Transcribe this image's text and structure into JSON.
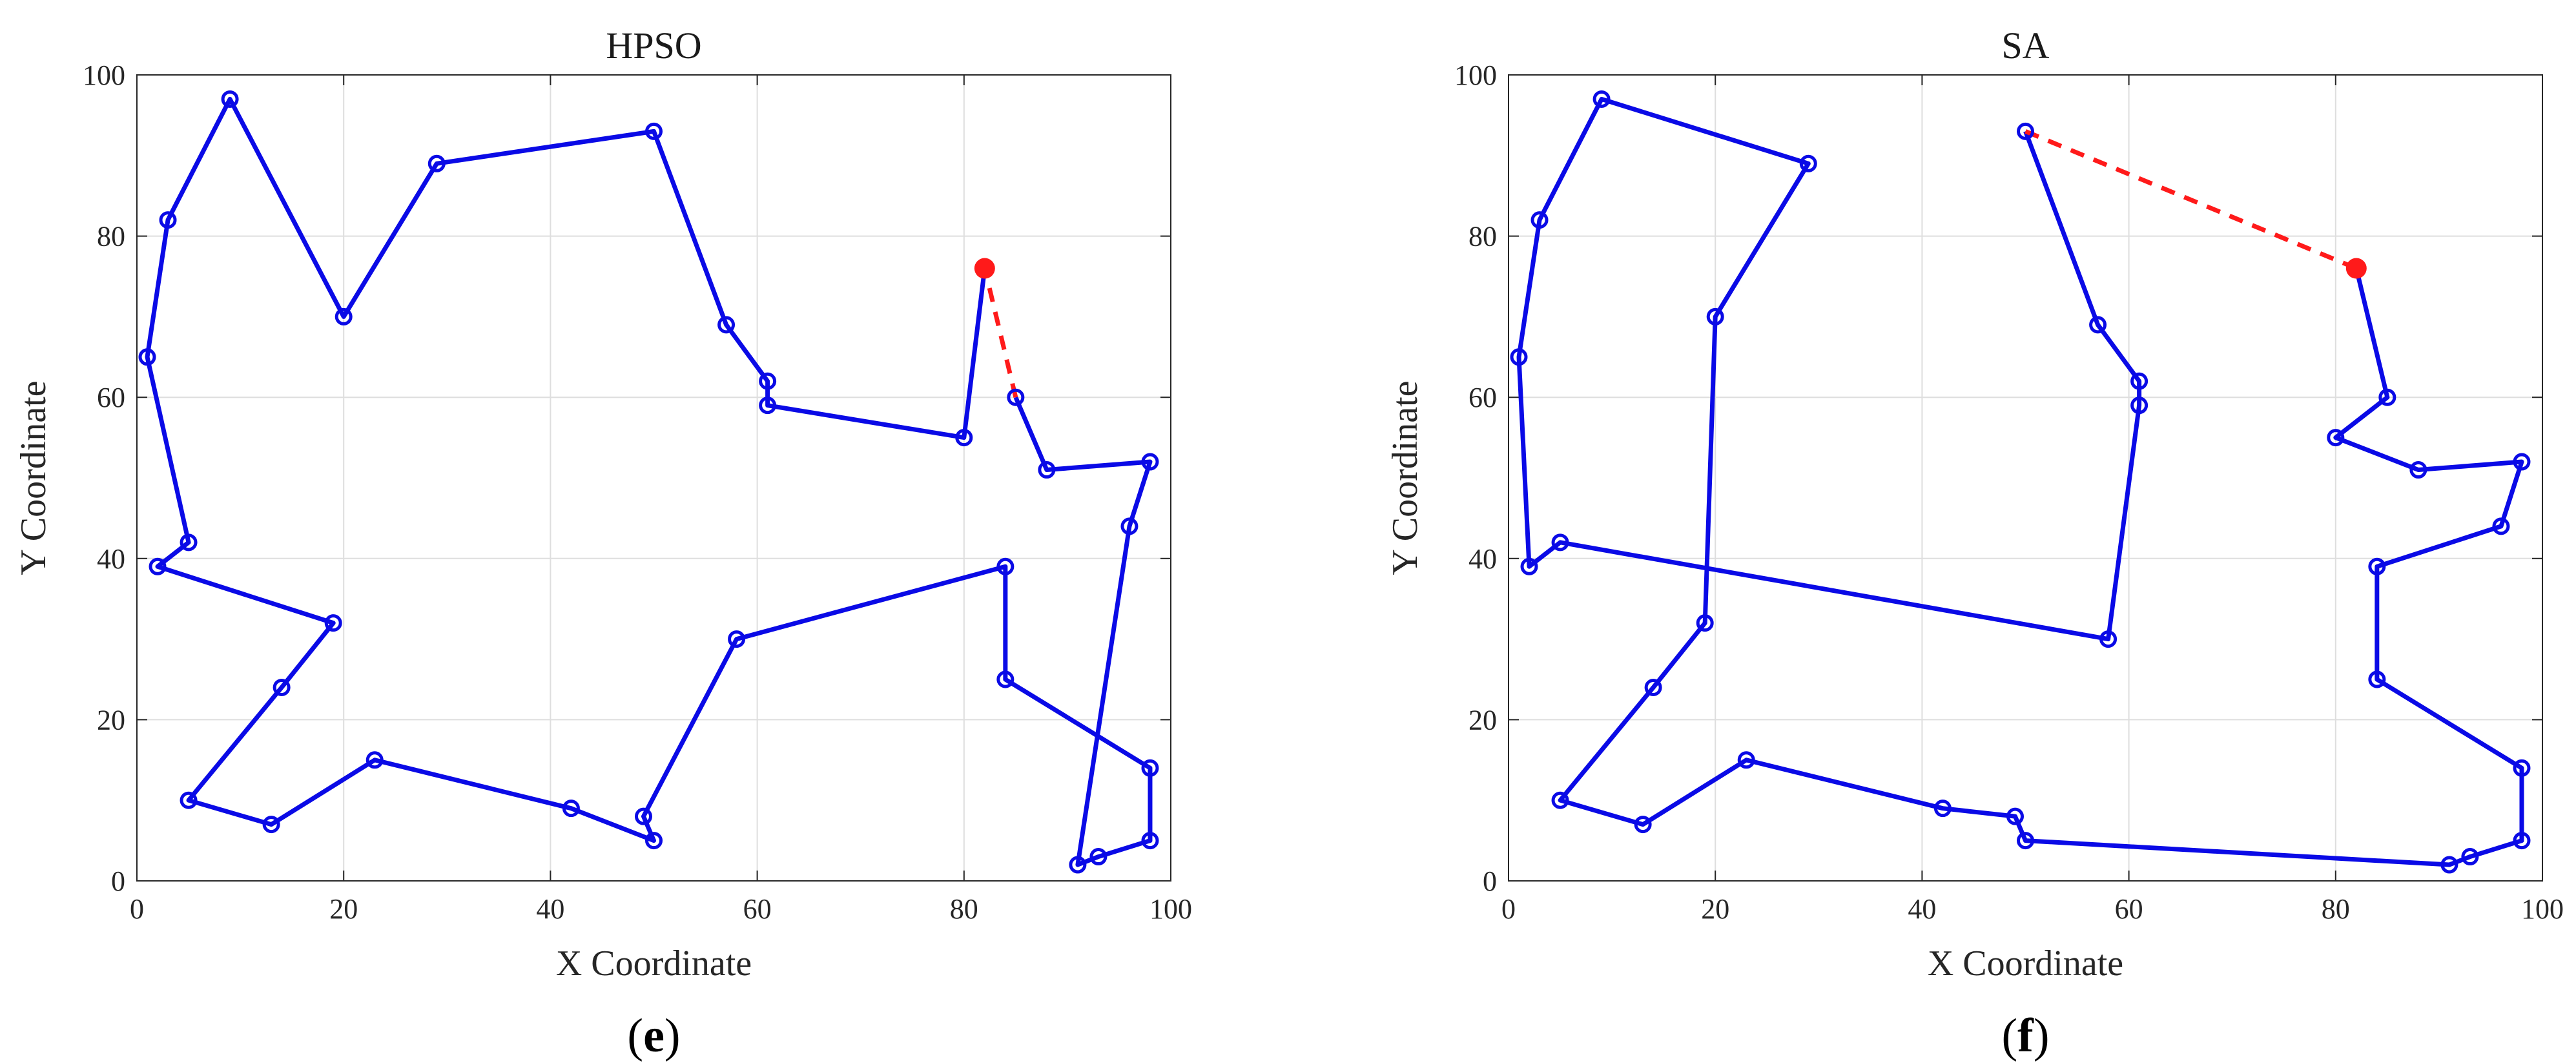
{
  "chart_data": [
    {
      "type": "line",
      "panel_label": "e",
      "title": "HPSO",
      "xlabel": "X Coordinate",
      "ylabel": "Y Coordinate",
      "xlim": [
        0,
        100
      ],
      "ylim": [
        0,
        100
      ],
      "xticks": [
        "0",
        "20",
        "40",
        "60",
        "80",
        "100"
      ],
      "yticks": [
        "0",
        "20",
        "40",
        "60",
        "80",
        "100"
      ],
      "grid": true,
      "route_color": "#0a0ae6",
      "return_color": "#ff1a1a",
      "depot": {
        "x": 82,
        "y": 76
      },
      "route": [
        {
          "x": 82,
          "y": 76
        },
        {
          "x": 80,
          "y": 55
        },
        {
          "x": 61,
          "y": 59
        },
        {
          "x": 61,
          "y": 62
        },
        {
          "x": 57,
          "y": 69
        },
        {
          "x": 50,
          "y": 93
        },
        {
          "x": 29,
          "y": 89
        },
        {
          "x": 20,
          "y": 70
        },
        {
          "x": 9,
          "y": 97
        },
        {
          "x": 3,
          "y": 82
        },
        {
          "x": 1,
          "y": 65
        },
        {
          "x": 5,
          "y": 42
        },
        {
          "x": 2,
          "y": 39
        },
        {
          "x": 19,
          "y": 32
        },
        {
          "x": 14,
          "y": 24
        },
        {
          "x": 5,
          "y": 10
        },
        {
          "x": 13,
          "y": 7
        },
        {
          "x": 23,
          "y": 15
        },
        {
          "x": 42,
          "y": 9
        },
        {
          "x": 50,
          "y": 5
        },
        {
          "x": 49,
          "y": 8
        },
        {
          "x": 58,
          "y": 30
        },
        {
          "x": 84,
          "y": 39
        },
        {
          "x": 84,
          "y": 25
        },
        {
          "x": 98,
          "y": 14
        },
        {
          "x": 98,
          "y": 5
        },
        {
          "x": 93,
          "y": 3
        },
        {
          "x": 91,
          "y": 2
        },
        {
          "x": 96,
          "y": 44
        },
        {
          "x": 98,
          "y": 52
        },
        {
          "x": 88,
          "y": 51
        },
        {
          "x": 85,
          "y": 60
        }
      ],
      "return_segment": [
        {
          "x": 85,
          "y": 60
        },
        {
          "x": 82,
          "y": 76
        }
      ]
    },
    {
      "type": "line",
      "panel_label": "f",
      "title": "SA",
      "xlabel": "X Coordinate",
      "ylabel": "Y Coordinate",
      "xlim": [
        0,
        100
      ],
      "ylim": [
        0,
        100
      ],
      "xticks": [
        "0",
        "20",
        "40",
        "60",
        "80",
        "100"
      ],
      "yticks": [
        "0",
        "20",
        "40",
        "60",
        "80",
        "100"
      ],
      "grid": true,
      "route_color": "#0a0ae6",
      "return_color": "#ff1a1a",
      "depot": {
        "x": 82,
        "y": 76
      },
      "route": [
        {
          "x": 82,
          "y": 76
        },
        {
          "x": 85,
          "y": 60
        },
        {
          "x": 80,
          "y": 55
        },
        {
          "x": 88,
          "y": 51
        },
        {
          "x": 98,
          "y": 52
        },
        {
          "x": 96,
          "y": 44
        },
        {
          "x": 84,
          "y": 39
        },
        {
          "x": 84,
          "y": 25
        },
        {
          "x": 98,
          "y": 14
        },
        {
          "x": 98,
          "y": 5
        },
        {
          "x": 93,
          "y": 3
        },
        {
          "x": 91,
          "y": 2
        },
        {
          "x": 50,
          "y": 5
        },
        {
          "x": 49,
          "y": 8
        },
        {
          "x": 42,
          "y": 9
        },
        {
          "x": 23,
          "y": 15
        },
        {
          "x": 13,
          "y": 7
        },
        {
          "x": 5,
          "y": 10
        },
        {
          "x": 14,
          "y": 24
        },
        {
          "x": 19,
          "y": 32
        },
        {
          "x": 20,
          "y": 70
        },
        {
          "x": 29,
          "y": 89
        },
        {
          "x": 9,
          "y": 97
        },
        {
          "x": 3,
          "y": 82
        },
        {
          "x": 1,
          "y": 65
        },
        {
          "x": 2,
          "y": 39
        },
        {
          "x": 5,
          "y": 42
        },
        {
          "x": 58,
          "y": 30
        },
        {
          "x": 61,
          "y": 59
        },
        {
          "x": 61,
          "y": 62
        },
        {
          "x": 57,
          "y": 69
        },
        {
          "x": 50,
          "y": 93
        }
      ],
      "return_segment": [
        {
          "x": 50,
          "y": 93
        },
        {
          "x": 82,
          "y": 76
        }
      ]
    }
  ]
}
